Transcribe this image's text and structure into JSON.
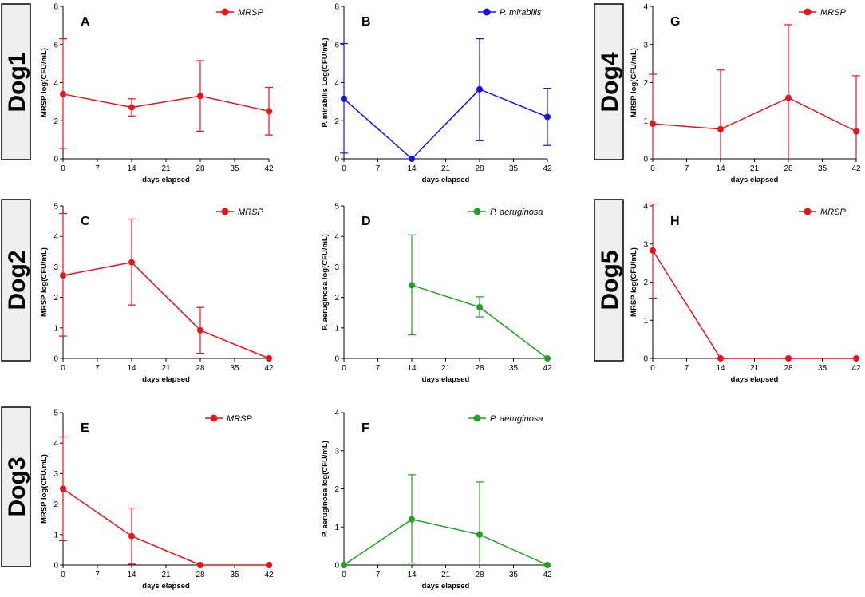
{
  "row_labels": [
    "Dog1",
    "Dog2",
    "Dog3",
    "Dog4",
    "Dog5"
  ],
  "colors": {
    "MRSP": "#e8141c",
    "P. mirabilis": "#1414e0",
    "P. aeruginosa": "#21a021"
  },
  "chart_data": [
    {
      "panel": "A",
      "dog": "Dog1",
      "type": "line",
      "series_name": "MRSP",
      "legend": "MRSP",
      "xlabel": "days elapsed",
      "ylabel": "MRSP log(CFU/mL)",
      "x": [
        0,
        14,
        28,
        42
      ],
      "y": [
        3.4,
        2.7,
        3.3,
        2.5
      ],
      "error_low": [
        0.55,
        2.25,
        1.45,
        1.25
      ],
      "error_high": [
        6.3,
        3.15,
        5.15,
        3.75
      ],
      "xticks": [
        0,
        7,
        14,
        21,
        28,
        35,
        42
      ],
      "yticks": [
        0,
        2,
        4,
        6,
        8
      ],
      "ylim": [
        0,
        8
      ],
      "xlim": [
        0,
        42
      ]
    },
    {
      "panel": "B",
      "dog": "Dog1",
      "type": "line",
      "series_name": "P. mirabilis",
      "legend": "P. mirabilis",
      "xlabel": "days elapsed",
      "ylabel": "P. mirabilis Log(CFU/mL)",
      "x": [
        0,
        14,
        28,
        42
      ],
      "y": [
        3.15,
        0,
        3.65,
        2.2
      ],
      "error_low": [
        0.3,
        0,
        0.95,
        0.7
      ],
      "error_high": [
        6.05,
        0,
        6.3,
        3.7
      ],
      "xticks": [
        0,
        7,
        14,
        21,
        28,
        35,
        42
      ],
      "yticks": [
        0,
        2,
        4,
        6,
        8
      ],
      "ylim": [
        0,
        8
      ],
      "xlim": [
        0,
        42
      ]
    },
    {
      "panel": "G",
      "dog": "Dog4",
      "type": "line",
      "series_name": "MRSP",
      "legend": "MRSP",
      "xlabel": "days elapsed",
      "ylabel": "MRSP log(CFU/mL)",
      "x": [
        0,
        14,
        28,
        42
      ],
      "y": [
        0.92,
        0.78,
        1.6,
        0.72
      ],
      "error_low": [
        0,
        0,
        0,
        0
      ],
      "error_high": [
        2.22,
        2.33,
        3.52,
        2.18
      ],
      "xticks": [
        0,
        7,
        14,
        21,
        28,
        35,
        42
      ],
      "yticks": [
        0,
        1,
        2,
        3,
        4
      ],
      "ylim": [
        0,
        4
      ],
      "xlim": [
        0,
        42
      ]
    },
    {
      "panel": "C",
      "dog": "Dog2",
      "type": "line",
      "series_name": "MRSP",
      "legend": "MRSP",
      "xlabel": "days elapsed",
      "ylabel": "MRSP log(CFU/mL)",
      "x": [
        0,
        14,
        28,
        42
      ],
      "y": [
        2.72,
        3.15,
        0.92,
        0
      ],
      "error_low": [
        0.73,
        1.75,
        0.17,
        0
      ],
      "error_high": [
        4.75,
        4.57,
        1.67,
        0
      ],
      "xticks": [
        0,
        7,
        14,
        21,
        28,
        35,
        42
      ],
      "yticks": [
        0,
        1,
        2,
        3,
        4,
        5
      ],
      "ylim": [
        0,
        5
      ],
      "xlim": [
        0,
        42
      ]
    },
    {
      "panel": "D",
      "dog": "Dog2",
      "type": "line",
      "series_name": "P. aeruginosa",
      "legend": "P. aeruginosa",
      "xlabel": "days elapsed",
      "ylabel": "P. aeruginosa log(CFU/mL)",
      "x": [
        14,
        28,
        42
      ],
      "y": [
        2.4,
        1.68,
        0
      ],
      "error_low": [
        0.77,
        1.36,
        0
      ],
      "error_high": [
        4.05,
        2.02,
        0
      ],
      "xticks": [
        0,
        7,
        14,
        21,
        28,
        35,
        42
      ],
      "yticks": [
        0,
        1,
        2,
        3,
        4,
        5
      ],
      "ylim": [
        0,
        5
      ],
      "xlim": [
        0,
        42
      ]
    },
    {
      "panel": "H",
      "dog": "Dog5",
      "type": "line",
      "series_name": "MRSP",
      "legend": "MRSP",
      "xlabel": "days elapsed",
      "ylabel": "MRSP log(CFU/mL)",
      "x": [
        0,
        14,
        28,
        42
      ],
      "y": [
        2.83,
        0,
        0,
        0
      ],
      "error_low": [
        1.58,
        0,
        0,
        0
      ],
      "error_high": [
        4.05,
        0,
        0,
        0
      ],
      "xticks": [
        0,
        7,
        14,
        21,
        28,
        35,
        42
      ],
      "yticks": [
        0,
        1,
        2,
        3,
        4
      ],
      "ylim": [
        0,
        4
      ],
      "xlim": [
        0,
        42
      ]
    },
    {
      "panel": "E",
      "dog": "Dog3",
      "type": "line",
      "series_name": "MRSP",
      "legend": "MRSP",
      "xlabel": "days elapsed",
      "ylabel": "MRSP log(CFU/mL)",
      "x": [
        0,
        14,
        28,
        42
      ],
      "y": [
        2.5,
        0.95,
        0,
        0
      ],
      "error_low": [
        0.8,
        0.03,
        0,
        0
      ],
      "error_high": [
        4.2,
        1.87,
        0,
        0
      ],
      "xticks": [
        0,
        7,
        14,
        21,
        28,
        35,
        42
      ],
      "yticks": [
        0,
        1,
        2,
        3,
        4,
        5
      ],
      "ylim": [
        0,
        5
      ],
      "xlim": [
        0,
        42
      ]
    },
    {
      "panel": "F",
      "dog": "Dog3",
      "type": "line",
      "series_name": "P. aeruginosa",
      "legend": "P. aeruginosa",
      "xlabel": "days elapsed",
      "ylabel": "P. aeruginosa log(CFU/mL)",
      "x": [
        0,
        14,
        28,
        42
      ],
      "y": [
        0,
        1.2,
        0.8,
        0
      ],
      "error_low": [
        0,
        0.05,
        0,
        0
      ],
      "error_high": [
        0,
        2.37,
        2.18,
        0
      ],
      "xticks": [
        0,
        7,
        14,
        21,
        28,
        35,
        42
      ],
      "yticks": [
        0,
        1,
        2,
        3,
        4
      ],
      "ylim": [
        0,
        4
      ],
      "xlim": [
        0,
        42
      ]
    }
  ]
}
